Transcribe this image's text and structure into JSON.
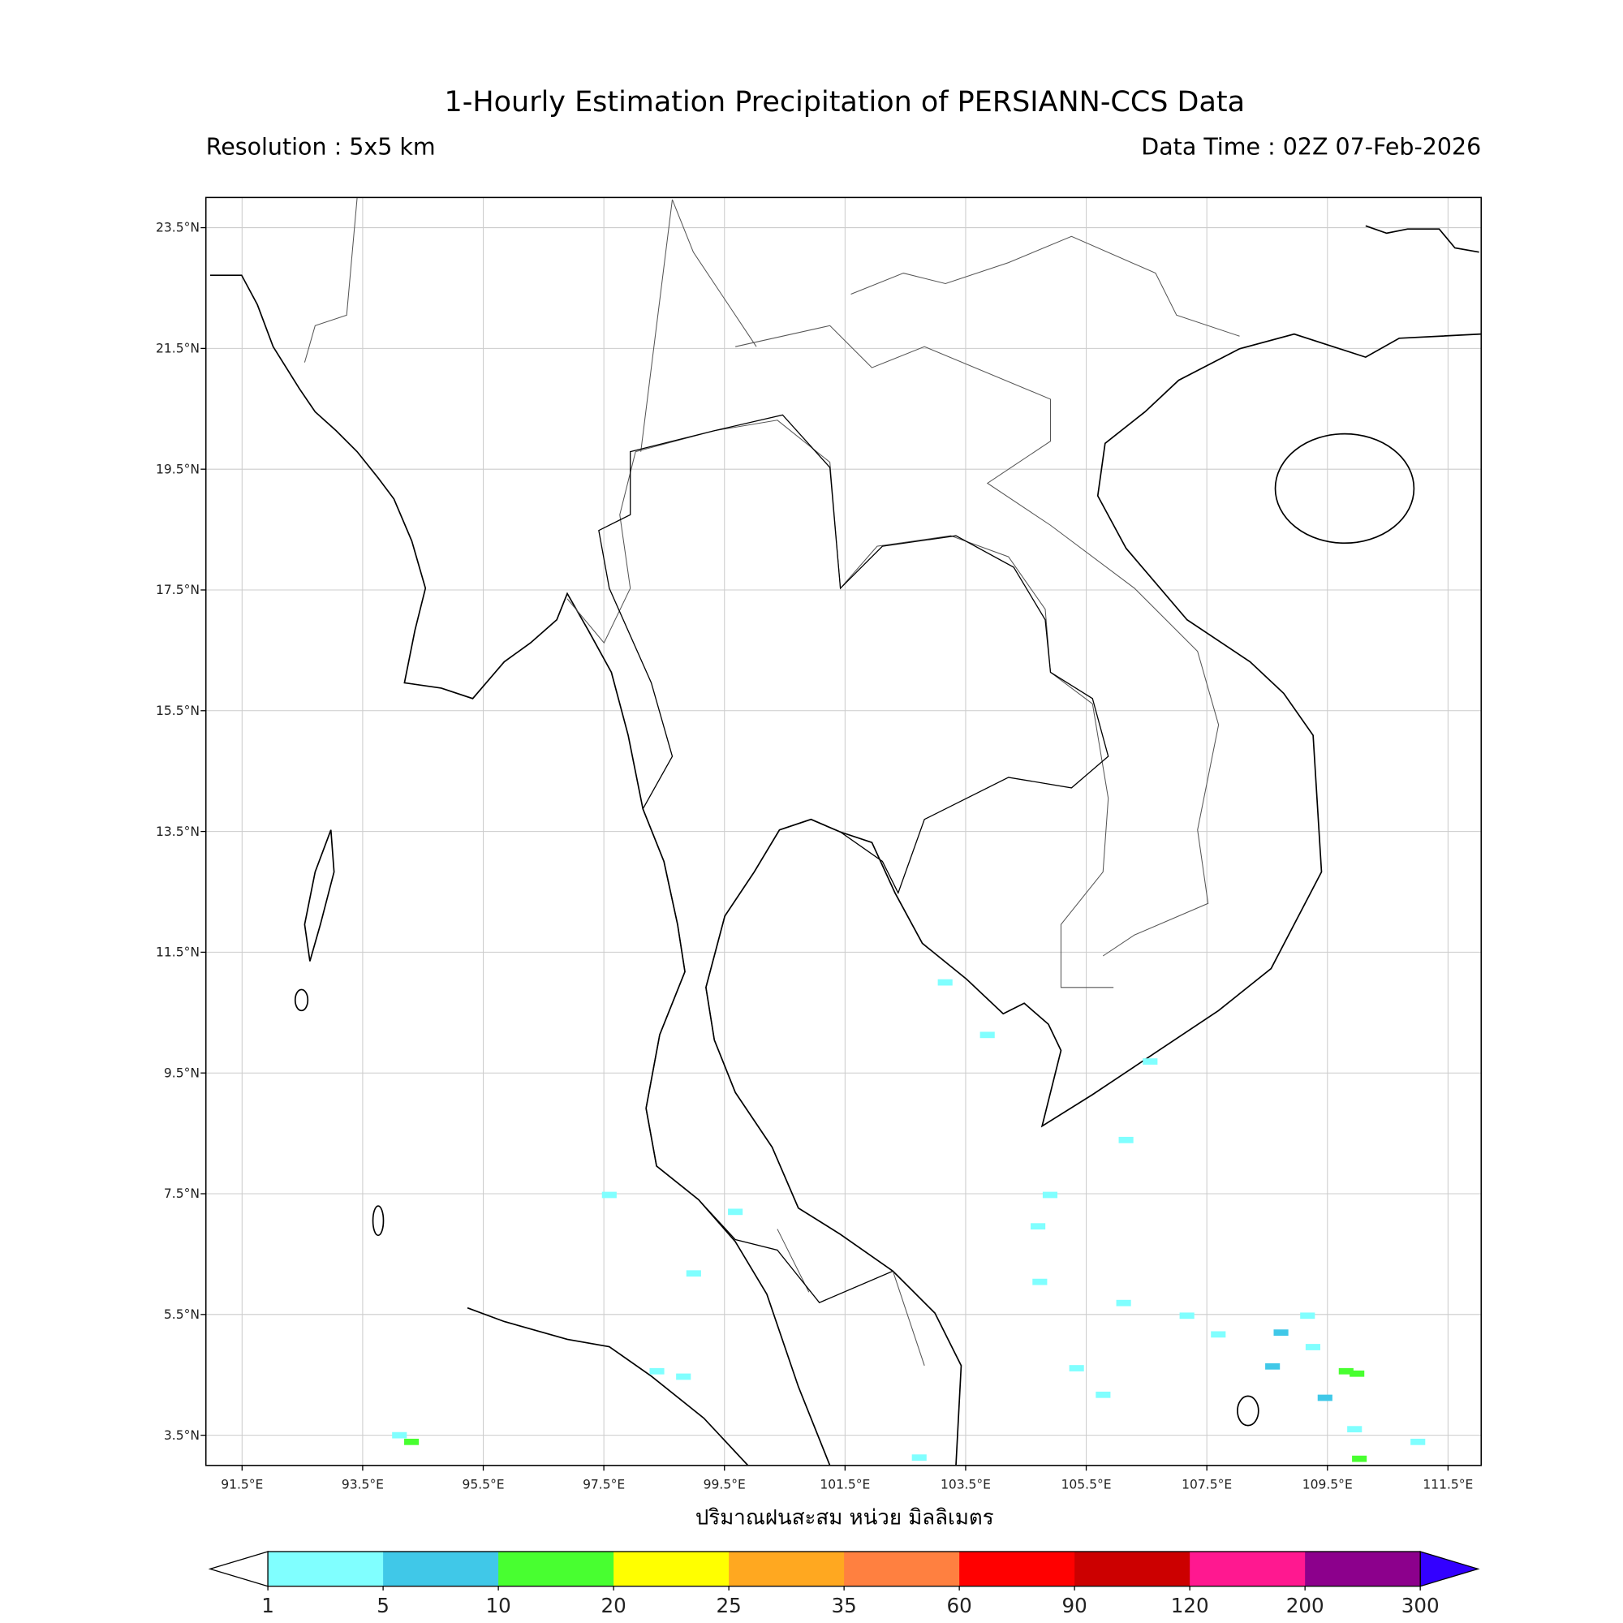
{
  "header": {
    "title": "1-Hourly Estimation Precipitation of PERSIANN-CCS Data",
    "resolution": "Resolution : 5x5 km",
    "data_time": "Data Time : 02Z 07-Feb-2026"
  },
  "map": {
    "extent": {
      "lon_min": 90.9,
      "lon_max": 112.05,
      "lat_min": 3.0,
      "lat_max": 24.0
    },
    "lon_ticks": [
      91.5,
      93.5,
      95.5,
      97.5,
      99.5,
      101.5,
      103.5,
      105.5,
      107.5,
      109.5,
      111.5
    ],
    "lon_tick_labels": [
      "91.5°E",
      "93.5°E",
      "95.5°E",
      "97.5°E",
      "99.5°E",
      "101.5°E",
      "103.5°E",
      "105.5°E",
      "107.5°E",
      "109.5°E",
      "111.5°E"
    ],
    "lat_ticks": [
      23.5,
      21.5,
      19.5,
      17.5,
      15.5,
      13.5,
      11.5,
      9.5,
      7.5,
      5.5,
      3.5
    ],
    "lat_tick_labels": [
      "23.5°N",
      "21.5°N",
      "19.5°N",
      "17.5°N",
      "15.5°N",
      "13.5°N",
      "11.5°N",
      "9.5°N",
      "7.5°N",
      "5.5°N",
      "3.5°N"
    ],
    "grid": true,
    "rain_cells": [
      {
        "lon": 103.16,
        "lat": 11.0,
        "bin": 0
      },
      {
        "lon": 103.86,
        "lat": 10.13,
        "bin": 0
      },
      {
        "lon": 106.56,
        "lat": 9.69,
        "bin": 0
      },
      {
        "lon": 99.68,
        "lat": 7.2,
        "bin": 0
      },
      {
        "lon": 98.99,
        "lat": 6.18,
        "bin": 0
      },
      {
        "lon": 104.9,
        "lat": 7.48,
        "bin": 0
      },
      {
        "lon": 104.7,
        "lat": 6.96,
        "bin": 0
      },
      {
        "lon": 104.73,
        "lat": 6.04,
        "bin": 0
      },
      {
        "lon": 106.12,
        "lat": 5.69,
        "bin": 0
      },
      {
        "lon": 107.17,
        "lat": 5.48,
        "bin": 0
      },
      {
        "lon": 107.69,
        "lat": 5.17,
        "bin": 0
      },
      {
        "lon": 108.73,
        "lat": 5.2,
        "bin": 1
      },
      {
        "lon": 109.17,
        "lat": 5.48,
        "bin": 0
      },
      {
        "lon": 109.26,
        "lat": 4.96,
        "bin": 0
      },
      {
        "lon": 108.59,
        "lat": 4.64,
        "bin": 1
      },
      {
        "lon": 109.81,
        "lat": 4.56,
        "bin": 2
      },
      {
        "lon": 109.99,
        "lat": 4.52,
        "bin": 2
      },
      {
        "lon": 105.34,
        "lat": 4.61,
        "bin": 0
      },
      {
        "lon": 105.78,
        "lat": 4.17,
        "bin": 0
      },
      {
        "lon": 98.38,
        "lat": 4.56,
        "bin": 0
      },
      {
        "lon": 98.82,
        "lat": 4.47,
        "bin": 0
      },
      {
        "lon": 94.11,
        "lat": 3.5,
        "bin": 0
      },
      {
        "lon": 94.31,
        "lat": 3.39,
        "bin": 2
      },
      {
        "lon": 109.95,
        "lat": 3.6,
        "bin": 0
      },
      {
        "lon": 109.46,
        "lat": 4.12,
        "bin": 1
      },
      {
        "lon": 110.03,
        "lat": 3.11,
        "bin": 2
      },
      {
        "lon": 102.73,
        "lat": 3.13,
        "bin": 0
      },
      {
        "lon": 97.59,
        "lat": 7.48,
        "bin": 0
      },
      {
        "lon": 106.16,
        "lat": 8.39,
        "bin": 0
      },
      {
        "lon": 111.0,
        "lat": 3.39,
        "bin": 0
      }
    ]
  },
  "colorbar": {
    "label": "ปริมาณฝนสะสม หน่วย มิลลิเมตร",
    "ticks": [
      "1",
      "5",
      "10",
      "20",
      "25",
      "35",
      "60",
      "90",
      "120",
      "200",
      "300"
    ],
    "colors": [
      "#80FFFF",
      "#40C8E8",
      "#48FF30",
      "#FFFF00",
      "#FFA820",
      "#FF8040",
      "#FF0000",
      "#CC0000",
      "#FF1890",
      "#8C008C"
    ],
    "under_color": "#FFFFFF",
    "over_color": "#3300FF"
  }
}
